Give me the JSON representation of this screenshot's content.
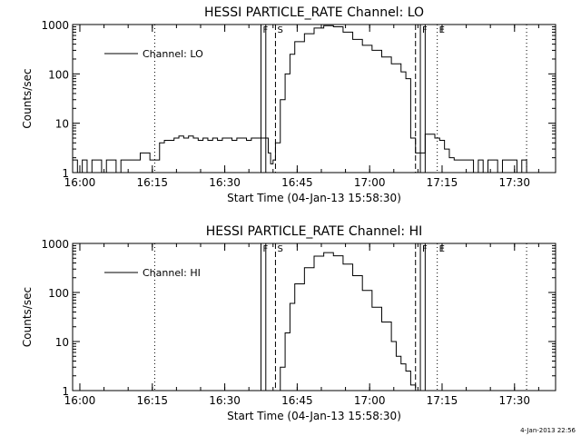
{
  "footer_timestamp": "4-Jan-2013 22:56",
  "chart_data": [
    {
      "type": "line",
      "title": "HESSI PARTICLE_RATE Channel: LO",
      "xlabel": "Start Time (04-Jan-13 15:58:30)",
      "ylabel": "Counts/sec",
      "yscale": "log",
      "ylim": [
        1,
        1000
      ],
      "xlim_minutes": [
        0,
        100
      ],
      "x_ticks": [
        "16:00",
        "16:15",
        "16:30",
        "16:45",
        "17:00",
        "17:15",
        "17:30"
      ],
      "y_ticks": [
        "1",
        "10",
        "100",
        "1000"
      ],
      "legend": {
        "label": "Channel: LO",
        "position": "top-left"
      },
      "markers": [
        {
          "label": "F",
          "x_minute": 39,
          "style": "solid"
        },
        {
          "label": "",
          "x_minute": 40,
          "style": "solid"
        },
        {
          "label": "S",
          "x_minute": 42,
          "style": "dashed"
        },
        {
          "label": "",
          "x_minute": 71,
          "style": "dashed"
        },
        {
          "label": "F",
          "x_minute": 72,
          "style": "solid"
        },
        {
          "label": "",
          "x_minute": 73,
          "style": "solid"
        },
        {
          "label": "E",
          "x_minute": 75.5,
          "style": "dotted"
        },
        {
          "label": "",
          "x_minute": 17,
          "style": "dotted"
        },
        {
          "label": "",
          "x_minute": 94,
          "style": "dotted"
        }
      ],
      "series": [
        {
          "values": [
            [
              0,
              1.8
            ],
            [
              1,
              1
            ],
            [
              2,
              1.8
            ],
            [
              3,
              1
            ],
            [
              4,
              1.8
            ],
            [
              5,
              1.8
            ],
            [
              6,
              1
            ],
            [
              7,
              1.8
            ],
            [
              8,
              1.8
            ],
            [
              9,
              1
            ],
            [
              10,
              1.8
            ],
            [
              11,
              1.8
            ],
            [
              12,
              1.8
            ],
            [
              13,
              1.8
            ],
            [
              14,
              2.5
            ],
            [
              15,
              2.5
            ],
            [
              16,
              1.8
            ],
            [
              17,
              1.8
            ],
            [
              18,
              4
            ],
            [
              19,
              4.5
            ],
            [
              20,
              4.5
            ],
            [
              21,
              5
            ],
            [
              22,
              5.5
            ],
            [
              23,
              5
            ],
            [
              24,
              5.5
            ],
            [
              25,
              5
            ],
            [
              26,
              4.5
            ],
            [
              27,
              5
            ],
            [
              28,
              4.5
            ],
            [
              29,
              5
            ],
            [
              30,
              4.5
            ],
            [
              31,
              5
            ],
            [
              32,
              5
            ],
            [
              33,
              4.5
            ],
            [
              34,
              5
            ],
            [
              35,
              5
            ],
            [
              36,
              4.5
            ],
            [
              37,
              5
            ],
            [
              38,
              5
            ],
            [
              39,
              5
            ],
            [
              40,
              5
            ],
            [
              40.5,
              2.5
            ],
            [
              41,
              1.5
            ],
            [
              41.5,
              1.8
            ],
            [
              42,
              4
            ],
            [
              43,
              30
            ],
            [
              44,
              100
            ],
            [
              45,
              250
            ],
            [
              46,
              450
            ],
            [
              48,
              650
            ],
            [
              50,
              850
            ],
            [
              52,
              950
            ],
            [
              54,
              900
            ],
            [
              56,
              700
            ],
            [
              58,
              500
            ],
            [
              60,
              380
            ],
            [
              62,
              300
            ],
            [
              64,
              220
            ],
            [
              66,
              160
            ],
            [
              68,
              110
            ],
            [
              69,
              80
            ],
            [
              70,
              5
            ],
            [
              71,
              2.5
            ],
            [
              72,
              2.5
            ],
            [
              73,
              6
            ],
            [
              74,
              6
            ],
            [
              75,
              5
            ],
            [
              76,
              4.5
            ],
            [
              77,
              3
            ],
            [
              78,
              2
            ],
            [
              79,
              1.8
            ],
            [
              80,
              1.8
            ],
            [
              81,
              1.8
            ],
            [
              82,
              1.8
            ],
            [
              83,
              1
            ],
            [
              84,
              1.8
            ],
            [
              85,
              1
            ],
            [
              86,
              1.8
            ],
            [
              87,
              1.8
            ],
            [
              88,
              1
            ],
            [
              89,
              1.8
            ],
            [
              90,
              1.8
            ],
            [
              91,
              1.8
            ],
            [
              92,
              1
            ],
            [
              93,
              1.8
            ],
            [
              94,
              1
            ]
          ]
        }
      ]
    },
    {
      "type": "line",
      "title": "HESSI PARTICLE_RATE Channel: HI",
      "xlabel": "Start Time (04-Jan-13 15:58:30)",
      "ylabel": "Counts/sec",
      "yscale": "log",
      "ylim": [
        1,
        1000
      ],
      "xlim_minutes": [
        0,
        100
      ],
      "x_ticks": [
        "16:00",
        "16:15",
        "16:30",
        "16:45",
        "17:00",
        "17:15",
        "17:30"
      ],
      "y_ticks": [
        "1",
        "10",
        "100",
        "1000"
      ],
      "legend": {
        "label": "Channel: HI",
        "position": "top-left"
      },
      "markers": [
        {
          "label": "F",
          "x_minute": 39,
          "style": "solid"
        },
        {
          "label": "",
          "x_minute": 40,
          "style": "solid"
        },
        {
          "label": "S",
          "x_minute": 42,
          "style": "dashed"
        },
        {
          "label": "",
          "x_minute": 71,
          "style": "dashed"
        },
        {
          "label": "F",
          "x_minute": 72,
          "style": "solid"
        },
        {
          "label": "",
          "x_minute": 73,
          "style": "solid"
        },
        {
          "label": "E",
          "x_minute": 75.5,
          "style": "dotted"
        },
        {
          "label": "",
          "x_minute": 17,
          "style": "dotted"
        },
        {
          "label": "",
          "x_minute": 94,
          "style": "dotted"
        }
      ],
      "series": [
        {
          "values": [
            [
              42.5,
              1
            ],
            [
              43,
              3
            ],
            [
              44,
              15
            ],
            [
              45,
              60
            ],
            [
              46,
              150
            ],
            [
              48,
              320
            ],
            [
              50,
              550
            ],
            [
              52,
              650
            ],
            [
              54,
              560
            ],
            [
              56,
              380
            ],
            [
              58,
              220
            ],
            [
              60,
              110
            ],
            [
              62,
              50
            ],
            [
              64,
              25
            ],
            [
              66,
              10
            ],
            [
              67,
              5
            ],
            [
              68,
              3.5
            ],
            [
              69,
              2.5
            ],
            [
              70,
              1.3
            ],
            [
              71,
              1
            ]
          ]
        }
      ]
    }
  ]
}
